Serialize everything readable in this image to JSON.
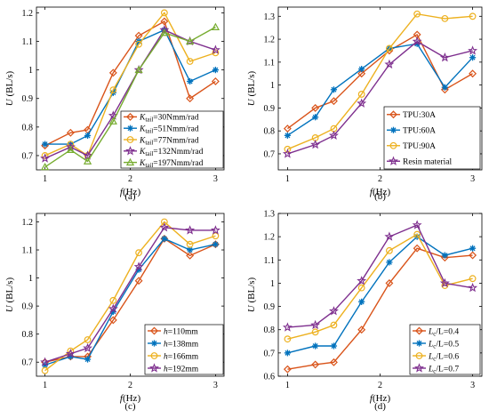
{
  "colors": {
    "orange": "#D95319",
    "blue": "#0072BD",
    "yellow": "#EDB120",
    "purple": "#7E2F8E",
    "green": "#77AC30"
  },
  "chart_data": [
    {
      "id": "a",
      "type": "line",
      "panel_label": "(a)",
      "xlabel": "f(Hz)",
      "ylabel": "U (BL/s)",
      "xlim": [
        0.9,
        3.1
      ],
      "ylim": [
        0.65,
        1.22
      ],
      "xticks": [
        1,
        2,
        3
      ],
      "yticks": [
        0.7,
        0.8,
        0.9,
        1.0,
        1.1,
        1.2
      ],
      "ytick_labels": [
        "0.7",
        "0.8",
        "0.9",
        "1",
        "1.1",
        "1.2"
      ],
      "legend_position": "bottom-right",
      "x": [
        1.0,
        1.3,
        1.5,
        1.8,
        2.1,
        2.4,
        2.7,
        3.0
      ],
      "series": [
        {
          "name": "K_tail=30Nmm/rad",
          "sym": "K",
          "sub": "tail",
          "rest": "=30Nmm/rad",
          "color": "orange",
          "marker": "diamond",
          "values": [
            0.735,
            0.78,
            0.79,
            0.99,
            1.12,
            1.17,
            0.9,
            0.96
          ]
        },
        {
          "name": "K_tail=51Nmm/rad",
          "sym": "K",
          "sub": "tail",
          "rest": "=51Nmm/rad",
          "color": "blue",
          "marker": "asterisk",
          "values": [
            0.74,
            0.74,
            0.77,
            0.92,
            1.1,
            1.14,
            0.96,
            1.0
          ]
        },
        {
          "name": "K_tail=77Nmm/rad",
          "sym": "K",
          "sub": "tail",
          "rest": "=77Nmm/rad",
          "color": "yellow",
          "marker": "circle",
          "values": [
            0.7,
            0.74,
            0.7,
            0.93,
            1.09,
            1.2,
            1.03,
            1.06
          ]
        },
        {
          "name": "K_tail=132Nmm/rad",
          "sym": "K",
          "sub": "tail",
          "rest": "=132Nmm/rad",
          "color": "purple",
          "marker": "star",
          "values": [
            0.69,
            0.73,
            0.7,
            0.84,
            1.0,
            1.14,
            1.1,
            1.07
          ]
        },
        {
          "name": "K_tail=197Nmm/rad",
          "sym": "K",
          "sub": "tail",
          "rest": "=197Nmm/rad",
          "color": "green",
          "marker": "triangle",
          "values": [
            0.66,
            0.72,
            0.68,
            0.82,
            1.0,
            1.13,
            1.1,
            1.15
          ]
        }
      ]
    },
    {
      "id": "b",
      "type": "line",
      "panel_label": "(b)",
      "xlabel": "f(Hz)",
      "ylabel": "U (BL/s)",
      "xlim": [
        0.9,
        3.1
      ],
      "ylim": [
        0.63,
        1.34
      ],
      "xticks": [
        1,
        2,
        3
      ],
      "yticks": [
        0.7,
        0.8,
        0.9,
        1.0,
        1.1,
        1.2,
        1.3
      ],
      "ytick_labels": [
        "0.7",
        "0.8",
        "0.9",
        "1",
        "1.1",
        "1.2",
        "1.3"
      ],
      "legend_position": "bottom-right",
      "x": [
        1.0,
        1.3,
        1.5,
        1.8,
        2.1,
        2.4,
        2.7,
        3.0
      ],
      "series": [
        {
          "name": "TPU:30A",
          "sym": "",
          "sub": "",
          "rest": "TPU:30A",
          "color": "orange",
          "marker": "diamond",
          "values": [
            0.81,
            0.9,
            0.93,
            1.05,
            1.15,
            1.22,
            0.98,
            1.05
          ]
        },
        {
          "name": "TPU:60A",
          "sym": "",
          "sub": "",
          "rest": "TPU:60A",
          "color": "blue",
          "marker": "asterisk",
          "values": [
            0.78,
            0.86,
            0.98,
            1.07,
            1.16,
            1.18,
            0.99,
            1.12
          ]
        },
        {
          "name": "TPU:90A",
          "sym": "",
          "sub": "",
          "rest": "TPU:90A",
          "color": "yellow",
          "marker": "circle",
          "values": [
            0.72,
            0.77,
            0.81,
            0.96,
            1.16,
            1.31,
            1.29,
            1.3
          ]
        },
        {
          "name": "Resin material",
          "sym": "",
          "sub": "",
          "rest": "Resin material",
          "color": "purple",
          "marker": "star",
          "values": [
            0.7,
            0.74,
            0.78,
            0.92,
            1.09,
            1.19,
            1.12,
            1.15
          ]
        }
      ]
    },
    {
      "id": "c",
      "type": "line",
      "panel_label": "(c)",
      "xlabel": "f(Hz)",
      "ylabel": "U (BL/s)",
      "xlim": [
        0.9,
        3.1
      ],
      "ylim": [
        0.65,
        1.23
      ],
      "xticks": [
        1,
        2,
        3
      ],
      "yticks": [
        0.7,
        0.8,
        0.9,
        1.0,
        1.1,
        1.2
      ],
      "ytick_labels": [
        "0.7",
        "0.8",
        "0.9",
        "1",
        "1.1",
        "1.2"
      ],
      "legend_position": "bottom-right",
      "x": [
        1.0,
        1.3,
        1.5,
        1.8,
        2.1,
        2.4,
        2.7,
        3.0
      ],
      "series": [
        {
          "name": "h=110mm",
          "sym": "h",
          "sub": "",
          "rest": "=110mm",
          "color": "orange",
          "marker": "diamond",
          "values": [
            0.7,
            0.72,
            0.72,
            0.85,
            0.99,
            1.14,
            1.08,
            1.12
          ]
        },
        {
          "name": "h=138mm",
          "sym": "h",
          "sub": "",
          "rest": "=138mm",
          "color": "blue",
          "marker": "asterisk",
          "values": [
            0.69,
            0.72,
            0.71,
            0.88,
            1.03,
            1.14,
            1.1,
            1.12
          ]
        },
        {
          "name": "h=166mm",
          "sym": "h",
          "sub": "",
          "rest": "=166mm",
          "color": "yellow",
          "marker": "circle",
          "values": [
            0.67,
            0.74,
            0.78,
            0.92,
            1.09,
            1.2,
            1.12,
            1.15
          ]
        },
        {
          "name": "h=192mm",
          "sym": "h",
          "sub": "",
          "rest": "=192mm",
          "color": "purple",
          "marker": "star",
          "values": [
            0.7,
            0.73,
            0.75,
            0.89,
            1.04,
            1.18,
            1.17,
            1.17
          ]
        }
      ]
    },
    {
      "id": "d",
      "type": "line",
      "panel_label": "(d)",
      "xlabel": "f(Hz)",
      "ylabel": "U (BL/s)",
      "xlim": [
        0.9,
        3.1
      ],
      "ylim": [
        0.6,
        1.3
      ],
      "xticks": [
        1,
        2,
        3
      ],
      "yticks": [
        0.6,
        0.7,
        0.8,
        0.9,
        1.0,
        1.1,
        1.2,
        1.3
      ],
      "ytick_labels": [
        "0.6",
        "0.7",
        "0.8",
        "0.9",
        "1",
        "1.1",
        "1.2",
        "1.3"
      ],
      "legend_position": "bottom-right",
      "x": [
        1.0,
        1.3,
        1.5,
        1.8,
        2.1,
        2.4,
        2.7,
        3.0
      ],
      "series": [
        {
          "name": "Lc/L=0.4",
          "sym": "L",
          "sub": "c",
          "rest": "/L=0.4",
          "color": "orange",
          "marker": "diamond",
          "values": [
            0.63,
            0.65,
            0.66,
            0.8,
            1.0,
            1.15,
            1.11,
            1.12
          ]
        },
        {
          "name": "Lc/L=0.5",
          "sym": "L",
          "sub": "c",
          "rest": "/L=0.5",
          "color": "blue",
          "marker": "asterisk",
          "values": [
            0.7,
            0.73,
            0.73,
            0.92,
            1.09,
            1.2,
            1.12,
            1.15
          ]
        },
        {
          "name": "Lc/L=0.6",
          "sym": "L",
          "sub": "c",
          "rest": "/L=0.6",
          "color": "yellow",
          "marker": "circle",
          "values": [
            0.76,
            0.79,
            0.82,
            0.98,
            1.14,
            1.21,
            0.99,
            1.02
          ]
        },
        {
          "name": "Lc/L=0.7",
          "sym": "L",
          "sub": "c",
          "rest": "/L=0.7",
          "color": "purple",
          "marker": "star",
          "values": [
            0.81,
            0.82,
            0.88,
            1.01,
            1.2,
            1.25,
            1.0,
            0.98
          ]
        }
      ]
    }
  ]
}
